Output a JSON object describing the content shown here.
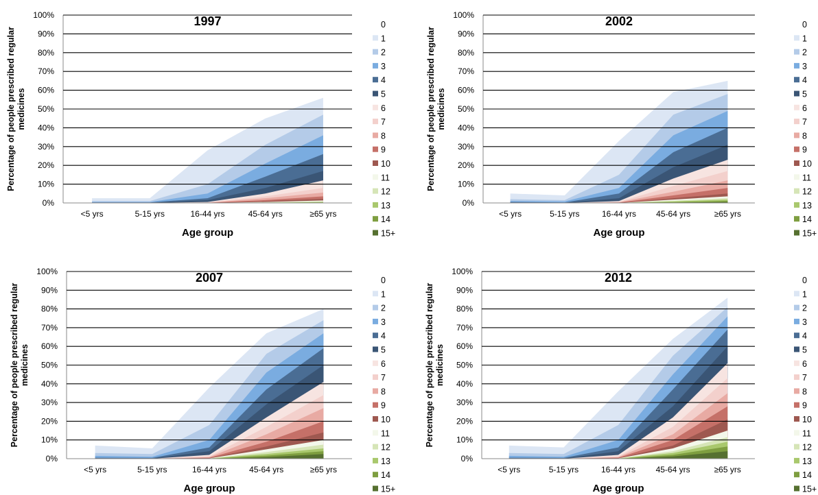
{
  "chart_data": [
    {
      "type": "area",
      "title": "1997",
      "xlabel": "Age group",
      "ylabel": "Percentage of people prescribed regular medicines",
      "ylim": [
        0,
        100
      ],
      "yticks": [
        "0%",
        "10%",
        "20%",
        "30%",
        "40%",
        "50%",
        "60%",
        "70%",
        "80%",
        "90%",
        "100%"
      ],
      "categories": [
        "<5 yrs",
        "5-15 yrs",
        "16-44 yrs",
        "45-64 yrs",
        "≥65 yrs"
      ],
      "grid": true,
      "legend_position": "right",
      "thresholds": [
        {
          "name": "1",
          "values": [
            2.5,
            2.5,
            28,
            45,
            56
          ]
        },
        {
          "name": "2",
          "values": [
            1,
            1,
            10,
            31,
            47
          ]
        },
        {
          "name": "3",
          "values": [
            0.5,
            0.5,
            5,
            21,
            36
          ]
        },
        {
          "name": "4",
          "values": [
            0.3,
            0.3,
            2.5,
            14,
            26
          ]
        },
        {
          "name": "5",
          "values": [
            0.1,
            0.1,
            1.5,
            8,
            17
          ]
        },
        {
          "name": "6",
          "values": [
            0,
            0,
            0.5,
            5,
            12
          ]
        },
        {
          "name": "7",
          "values": [
            0,
            0,
            0.3,
            3.5,
            8
          ]
        },
        {
          "name": "8",
          "values": [
            0,
            0,
            0.2,
            2.5,
            5.5
          ]
        },
        {
          "name": "9",
          "values": [
            0,
            0,
            0.1,
            1.5,
            3.5
          ]
        },
        {
          "name": "10",
          "values": [
            0,
            0,
            0,
            1,
            2.2
          ]
        },
        {
          "name": "11",
          "values": [
            0,
            0,
            0,
            0.5,
            1.3
          ]
        },
        {
          "name": "12",
          "values": [
            0,
            0,
            0,
            0.3,
            0.8
          ]
        },
        {
          "name": "13",
          "values": [
            0,
            0,
            0,
            0.2,
            0.5
          ]
        },
        {
          "name": "14",
          "values": [
            0,
            0,
            0,
            0.1,
            0.3
          ]
        },
        {
          "name": "15+",
          "values": [
            0,
            0,
            0,
            0,
            0.1
          ]
        }
      ]
    },
    {
      "type": "area",
      "title": "2002",
      "xlabel": "Age group",
      "ylabel": "Percentage of people prescribed regular medicines",
      "ylim": [
        0,
        100
      ],
      "yticks": [
        "0%",
        "10%",
        "20%",
        "30%",
        "40%",
        "50%",
        "60%",
        "70%",
        "80%",
        "90%",
        "100%"
      ],
      "categories": [
        "<5 yrs",
        "5-15 yrs",
        "16-44 yrs",
        "45-64 yrs",
        "≥65 yrs"
      ],
      "grid": true,
      "legend_position": "right",
      "thresholds": [
        {
          "name": "1",
          "values": [
            5,
            4,
            33,
            59,
            65
          ]
        },
        {
          "name": "2",
          "values": [
            2,
            1.5,
            15,
            47,
            58
          ]
        },
        {
          "name": "3",
          "values": [
            1,
            0.8,
            8,
            36,
            49
          ]
        },
        {
          "name": "4",
          "values": [
            0.5,
            0.3,
            5,
            27,
            40
          ]
        },
        {
          "name": "5",
          "values": [
            0.2,
            0.1,
            2.5,
            19,
            31
          ]
        },
        {
          "name": "6",
          "values": [
            0,
            0,
            1,
            13,
            23
          ]
        },
        {
          "name": "7",
          "values": [
            0,
            0,
            0.6,
            9,
            17
          ]
        },
        {
          "name": "8",
          "values": [
            0,
            0,
            0.4,
            6,
            12
          ]
        },
        {
          "name": "9",
          "values": [
            0,
            0,
            0.2,
            4,
            8
          ]
        },
        {
          "name": "10",
          "values": [
            0,
            0,
            0.1,
            2.5,
            5
          ]
        },
        {
          "name": "11",
          "values": [
            0,
            0,
            0,
            1.8,
            3.5
          ]
        },
        {
          "name": "12",
          "values": [
            0,
            0,
            0,
            1.2,
            2.5
          ]
        },
        {
          "name": "13",
          "values": [
            0,
            0,
            0,
            0.8,
            1.8
          ]
        },
        {
          "name": "14",
          "values": [
            0,
            0,
            0,
            0.4,
            1.1
          ]
        },
        {
          "name": "15+",
          "values": [
            0,
            0,
            0,
            0.2,
            0.5
          ]
        }
      ]
    },
    {
      "type": "area",
      "title": "2007",
      "xlabel": "Age group",
      "ylabel": "Percentage of people prescribed regular medicines",
      "ylim": [
        0,
        100
      ],
      "yticks": [
        "0%",
        "10%",
        "20%",
        "30%",
        "40%",
        "50%",
        "60%",
        "70%",
        "80%",
        "90%",
        "100%"
      ],
      "categories": [
        "<5 yrs",
        "5-15 yrs",
        "16-44 yrs",
        "45-64 yrs",
        "≥65 yrs"
      ],
      "grid": true,
      "legend_position": "right",
      "thresholds": [
        {
          "name": "1",
          "values": [
            7,
            5.5,
            38,
            67,
            80
          ]
        },
        {
          "name": "2",
          "values": [
            3,
            2.5,
            18,
            56,
            74
          ]
        },
        {
          "name": "3",
          "values": [
            1.5,
            1,
            10,
            46,
            67
          ]
        },
        {
          "name": "4",
          "values": [
            0.5,
            0.4,
            6,
            37,
            59
          ]
        },
        {
          "name": "5",
          "values": [
            0.2,
            0.1,
            4,
            29,
            50
          ]
        },
        {
          "name": "6",
          "values": [
            0,
            0,
            2,
            22,
            41
          ]
        },
        {
          "name": "7",
          "values": [
            0,
            0,
            1.2,
            17,
            34
          ]
        },
        {
          "name": "8",
          "values": [
            0,
            0,
            0.8,
            13,
            27
          ]
        },
        {
          "name": "9",
          "values": [
            0,
            0,
            0.5,
            9,
            20
          ]
        },
        {
          "name": "10",
          "values": [
            0,
            0,
            0.3,
            6.5,
            14
          ]
        },
        {
          "name": "11",
          "values": [
            0,
            0,
            0.2,
            5,
            10
          ]
        },
        {
          "name": "12",
          "values": [
            0,
            0,
            0.1,
            3.5,
            7.5
          ]
        },
        {
          "name": "13",
          "values": [
            0,
            0,
            0.1,
            2.5,
            5.5
          ]
        },
        {
          "name": "14",
          "values": [
            0,
            0,
            0,
            1.6,
            4
          ]
        },
        {
          "name": "15+",
          "values": [
            0,
            0,
            0,
            0.8,
            2.5
          ]
        }
      ]
    },
    {
      "type": "area",
      "title": "2012",
      "xlabel": "Age group",
      "ylabel": "Percentage of people prescribed regular medicines",
      "ylim": [
        0,
        100
      ],
      "yticks": [
        "0%",
        "10%",
        "20%",
        "30%",
        "40%",
        "50%",
        "60%",
        "70%",
        "80%",
        "90%",
        "100%"
      ],
      "categories": [
        "<5 yrs",
        "5-15 yrs",
        "16-44 yrs",
        "45-64 yrs",
        "≥65 yrs"
      ],
      "grid": true,
      "legend_position": "right",
      "thresholds": [
        {
          "name": "1",
          "values": [
            7,
            6,
            36,
            64,
            86
          ]
        },
        {
          "name": "2",
          "values": [
            3,
            2.5,
            18,
            55,
            81
          ]
        },
        {
          "name": "3",
          "values": [
            1.5,
            1,
            10,
            45,
            76
          ]
        },
        {
          "name": "4",
          "values": [
            0.5,
            0.4,
            6,
            37,
            69
          ]
        },
        {
          "name": "5",
          "values": [
            0.2,
            0.1,
            4,
            28,
            60
          ]
        },
        {
          "name": "6",
          "values": [
            0,
            0,
            2,
            22,
            51
          ]
        },
        {
          "name": "7",
          "values": [
            0,
            0,
            1.2,
            17,
            43
          ]
        },
        {
          "name": "8",
          "values": [
            0,
            0,
            0.8,
            13,
            35
          ]
        },
        {
          "name": "9",
          "values": [
            0,
            0,
            0.5,
            10,
            28
          ]
        },
        {
          "name": "10",
          "values": [
            0,
            0,
            0.3,
            7,
            21
          ]
        },
        {
          "name": "11",
          "values": [
            0,
            0,
            0.2,
            5.5,
            15
          ]
        },
        {
          "name": "12",
          "values": [
            0,
            0,
            0.1,
            4,
            11.5
          ]
        },
        {
          "name": "13",
          "values": [
            0,
            0,
            0.1,
            3,
            9
          ]
        },
        {
          "name": "14",
          "values": [
            0,
            0,
            0,
            2,
            6.5
          ]
        },
        {
          "name": "15+",
          "values": [
            0,
            0,
            0,
            1.2,
            4
          ]
        }
      ]
    }
  ],
  "legend": {
    "labels": [
      "0",
      "1",
      "2",
      "3",
      "4",
      "5",
      "6",
      "7",
      "8",
      "9",
      "10",
      "11",
      "12",
      "13",
      "14",
      "15+"
    ],
    "colors": [
      "#ffffff",
      "#dce6f4",
      "#b4cbe8",
      "#7aace0",
      "#4a6d94",
      "#3a5575",
      "#f7e4e1",
      "#f3d0cc",
      "#e8aaa3",
      "#c57068",
      "#9e5850",
      "#f3f7ea",
      "#d6e5b7",
      "#a9c86d",
      "#7e9e40",
      "#567030"
    ]
  }
}
